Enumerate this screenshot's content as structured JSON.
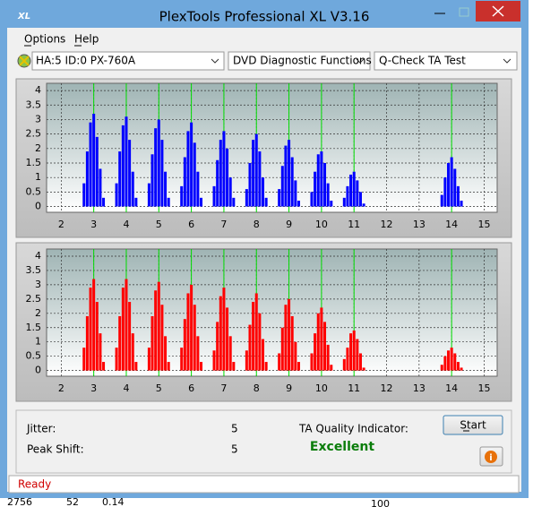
{
  "window": {
    "title": "PlexTools Professional XL V3.16"
  },
  "menu": [
    "Options",
    "Help"
  ],
  "toolbar": [
    "HA:5 ID:0  PX-760A",
    "DVD Diagnostic Functions",
    "Q-Check TA Test"
  ],
  "chart_data": [
    {
      "type": "bar",
      "color": "#0000ff",
      "x": [
        2.7,
        2.8,
        2.9,
        3,
        3.1,
        3.2,
        3.3,
        3.7,
        3.8,
        3.9,
        4,
        4.1,
        4.2,
        4.3,
        4.7,
        4.8,
        4.9,
        5,
        5.1,
        5.2,
        5.3,
        5.7,
        5.8,
        5.9,
        6,
        6.1,
        6.2,
        6.3,
        6.7,
        6.8,
        6.9,
        7,
        7.1,
        7.2,
        7.3,
        7.7,
        7.8,
        7.9,
        8,
        8.1,
        8.2,
        8.3,
        8.7,
        8.8,
        8.9,
        9,
        9.1,
        9.2,
        9.3,
        9.7,
        9.8,
        9.9,
        10,
        10.1,
        10.2,
        10.3,
        10.7,
        10.8,
        10.9,
        11,
        11.1,
        11.2,
        11.3,
        13.7,
        13.8,
        13.9,
        14,
        14.1,
        14.2,
        14.3
      ],
      "values": [
        0.8,
        1.9,
        2.9,
        3.2,
        2.4,
        1.3,
        0.3,
        0.8,
        1.9,
        2.8,
        3.1,
        2.3,
        1.2,
        0.3,
        0.8,
        1.8,
        2.7,
        3.0,
        2.3,
        1.2,
        0.3,
        0.7,
        1.7,
        2.6,
        2.9,
        2.2,
        1.2,
        0.3,
        0.7,
        1.6,
        2.3,
        2.6,
        2.0,
        1.0,
        0.3,
        0.6,
        1.5,
        2.3,
        2.5,
        1.9,
        1.0,
        0.3,
        0.6,
        1.4,
        2.1,
        2.3,
        1.7,
        0.9,
        0.2,
        0.5,
        1.2,
        1.8,
        1.9,
        1.5,
        0.8,
        0.2,
        0.3,
        0.7,
        1.1,
        1.2,
        0.9,
        0.5,
        0.1,
        0.4,
        1.0,
        1.5,
        1.7,
        1.3,
        0.7,
        0.2
      ],
      "xlim": [
        1.55,
        15.4
      ],
      "ylim": [
        -0.2,
        4.25
      ],
      "xticks": [
        2,
        3,
        4,
        5,
        6,
        7,
        8,
        9,
        10,
        11,
        12,
        13,
        14,
        15
      ],
      "yticks": [
        0,
        0.5,
        1,
        1.5,
        2,
        2.5,
        3,
        3.5,
        4
      ],
      "grid": true,
      "reference_x": [
        3,
        4,
        5,
        6,
        7,
        8,
        9,
        10,
        11,
        14
      ],
      "reference_color": "#00dd00"
    },
    {
      "type": "bar",
      "color": "#ff0000",
      "x": [
        2.7,
        2.8,
        2.9,
        3,
        3.1,
        3.2,
        3.3,
        3.7,
        3.8,
        3.9,
        4,
        4.1,
        4.2,
        4.3,
        4.7,
        4.8,
        4.9,
        5,
        5.1,
        5.2,
        5.3,
        5.7,
        5.8,
        5.9,
        6,
        6.1,
        6.2,
        6.3,
        6.7,
        6.8,
        6.9,
        7,
        7.1,
        7.2,
        7.3,
        7.7,
        7.8,
        7.9,
        8,
        8.1,
        8.2,
        8.3,
        8.7,
        8.8,
        8.9,
        9,
        9.1,
        9.2,
        9.3,
        9.7,
        9.8,
        9.9,
        10,
        10.1,
        10.2,
        10.3,
        10.7,
        10.8,
        10.9,
        11,
        11.1,
        11.2,
        11.3,
        13.7,
        13.8,
        13.9,
        14,
        14.1,
        14.2,
        14.3
      ],
      "values": [
        0.8,
        1.9,
        2.9,
        3.2,
        2.4,
        1.3,
        0.3,
        0.8,
        1.9,
        2.9,
        3.2,
        2.4,
        1.3,
        0.3,
        0.8,
        1.9,
        2.8,
        3.1,
        2.3,
        1.2,
        0.3,
        0.8,
        1.8,
        2.7,
        3.0,
        2.3,
        1.2,
        0.3,
        0.7,
        1.7,
        2.6,
        2.9,
        2.2,
        1.2,
        0.3,
        0.7,
        1.6,
        2.4,
        2.7,
        2.0,
        1.1,
        0.3,
        0.6,
        1.5,
        2.3,
        2.5,
        1.9,
        1.0,
        0.3,
        0.6,
        1.3,
        2.0,
        2.2,
        1.7,
        0.9,
        0.2,
        0.4,
        0.8,
        1.3,
        1.4,
        1.1,
        0.6,
        0.1,
        0.2,
        0.5,
        0.7,
        0.8,
        0.6,
        0.3,
        0.1
      ],
      "xlim": [
        1.55,
        15.4
      ],
      "ylim": [
        -0.2,
        4.25
      ],
      "xticks": [
        2,
        3,
        4,
        5,
        6,
        7,
        8,
        9,
        10,
        11,
        12,
        13,
        14,
        15
      ],
      "yticks": [
        0,
        0.5,
        1,
        1.5,
        2,
        2.5,
        3,
        3.5,
        4
      ],
      "grid": true,
      "reference_x": [
        3,
        4,
        5,
        6,
        7,
        8,
        9,
        10,
        11,
        14
      ],
      "reference_color": "#00dd00"
    }
  ],
  "results": {
    "jitter_label": "Jitter:",
    "jitter_value": 5,
    "peak_shift_label": "Peak Shift:",
    "peak_shift_value": 5,
    "ta_label": "TA Quality Indicator:",
    "ta_result": "Excellent",
    "start_button": "Start"
  },
  "status": "Ready",
  "background_texts": [
    "2756",
    "52",
    "0.14",
    "100"
  ]
}
